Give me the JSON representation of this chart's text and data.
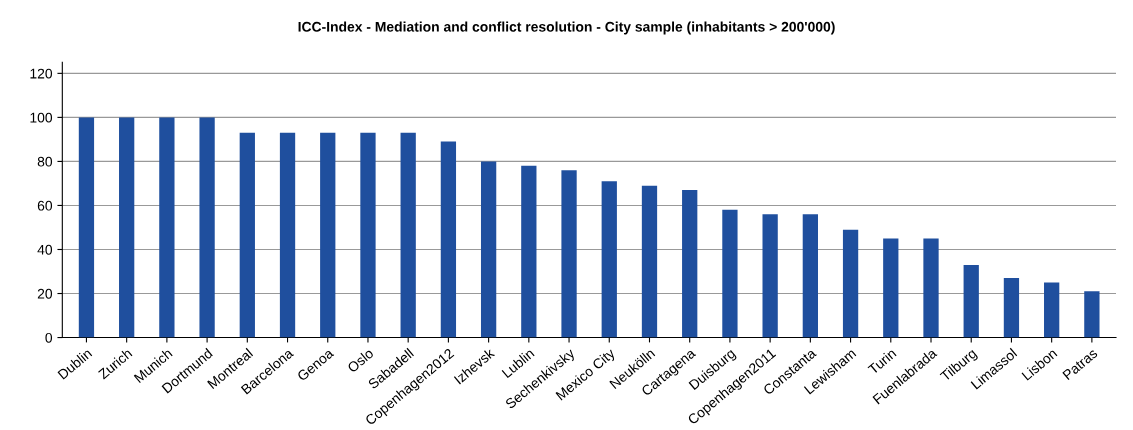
{
  "chart_data": {
    "type": "bar",
    "title": "ICC-Index - Mediation and conflict resolution - City sample (inhabitants > 200'000)",
    "categories": [
      "Dublin",
      "Zurich",
      "Munich",
      "Dortmund",
      "Montreal",
      "Barcelona",
      "Genoa",
      "Oslo",
      "Sabadell",
      "Copenhagen2012",
      "Izhevsk",
      "Lublin",
      "Sechenkivsky",
      "Mexico City",
      "Neukölln",
      "Cartagena",
      "Duisburg",
      "Copenhagen2011",
      "Constanta",
      "Lewisham",
      "Turin",
      "Fuenlabrada",
      "Tilburg",
      "Limassol",
      "Lisbon",
      "Patras"
    ],
    "values": [
      100,
      100,
      100,
      100,
      93,
      93,
      93,
      93,
      93,
      89,
      80,
      78,
      76,
      71,
      69,
      67,
      58,
      56,
      56,
      49,
      45,
      45,
      33,
      27,
      25,
      21
    ],
    "color": "#1f4f9e",
    "ylim": [
      0,
      125
    ],
    "yticks": [
      0,
      20,
      40,
      60,
      80,
      100,
      120
    ],
    "grid": "y"
  }
}
